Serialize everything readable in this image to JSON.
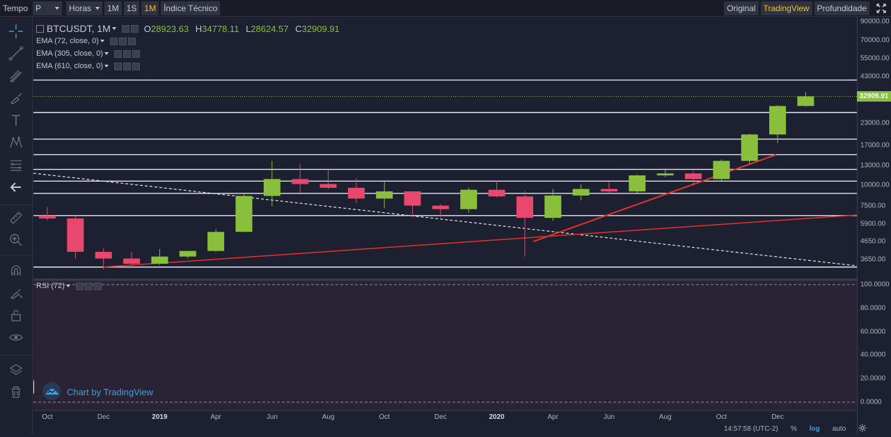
{
  "topbar": {
    "tempo_label": "Tempo",
    "interval_value": "P",
    "hours_label": "Horas",
    "intervals": [
      "1M",
      "1S",
      "1M"
    ],
    "active_interval_index": 2,
    "indicators_label": "Índice Técnico",
    "modes": [
      "Original",
      "TradingView",
      "Profundidade"
    ],
    "active_mode_index": 1
  },
  "legend": {
    "symbol": "BTCUSDT, 1M",
    "o_label": "O",
    "o_value": "28923.63",
    "h_label": "H",
    "h_value": "34778.11",
    "l_label": "L",
    "l_value": "28624.57",
    "c_label": "C",
    "c_value": "32909.91",
    "studies": [
      "EMA (72, close, 0)",
      "EMA (305, close, 0)",
      "EMA (610, close, 0)"
    ],
    "rsi": "RSI (72)"
  },
  "price_axis": {
    "labels": [
      "90000.00",
      "70000.00",
      "55000.00",
      "43000.00",
      "32909.91",
      "23000.00",
      "17000.00",
      "13000.00",
      "10000.00",
      "7500.00",
      "5900.00",
      "4650.00",
      "3650.00"
    ],
    "last_price": "32909.91",
    "rsi_labels": [
      "100.0000",
      "80.0000",
      "60.0000",
      "40.0000",
      "20.0000",
      "0.0000"
    ]
  },
  "time_axis": {
    "labels": [
      "Oct",
      "Dec",
      "2019",
      "Apr",
      "Jun",
      "Aug",
      "Oct",
      "Dec",
      "2020",
      "Apr",
      "Jun",
      "Aug",
      "Oct",
      "Dec"
    ],
    "bold": [
      "2019",
      "2020"
    ]
  },
  "bottombar": {
    "time": "14:57:58 (UTC-2)",
    "percent": "%",
    "log": "log",
    "auto": "auto"
  },
  "watermark": "Chart by TradingView",
  "colors": {
    "up": "#89bf3c",
    "down": "#e8486e",
    "background": "#1c2030",
    "rsi_background": "#2a2336",
    "trendline": "#e8322b",
    "accent": "#f0c419",
    "link": "#3b9fdf"
  },
  "chart_data": {
    "type": "candlestick",
    "scale": "log",
    "candles": [
      {
        "date": "2018-10",
        "o": 6600,
        "h": 7400,
        "l": 6200,
        "c": 6350
      },
      {
        "date": "2018-11",
        "o": 6350,
        "h": 6600,
        "l": 3700,
        "c": 4050
      },
      {
        "date": "2018-12",
        "o": 4050,
        "h": 4250,
        "l": 3200,
        "c": 3700
      },
      {
        "date": "2019-01",
        "o": 3700,
        "h": 4050,
        "l": 3400,
        "c": 3450
      },
      {
        "date": "2019-02",
        "o": 3450,
        "h": 4200,
        "l": 3400,
        "c": 3800
      },
      {
        "date": "2019-03",
        "o": 3800,
        "h": 4100,
        "l": 3700,
        "c": 4100
      },
      {
        "date": "2019-04",
        "o": 4100,
        "h": 5500,
        "l": 4050,
        "c": 5300
      },
      {
        "date": "2019-05",
        "o": 5300,
        "h": 9000,
        "l": 5300,
        "c": 8600
      },
      {
        "date": "2019-06",
        "o": 8600,
        "h": 13800,
        "l": 7500,
        "c": 10800
      },
      {
        "date": "2019-07",
        "o": 10800,
        "h": 13200,
        "l": 9000,
        "c": 10100
      },
      {
        "date": "2019-08",
        "o": 10100,
        "h": 12300,
        "l": 9400,
        "c": 9600
      },
      {
        "date": "2019-09",
        "o": 9600,
        "h": 10900,
        "l": 7800,
        "c": 8300
      },
      {
        "date": "2019-10",
        "o": 8300,
        "h": 10400,
        "l": 7300,
        "c": 9150
      },
      {
        "date": "2019-11",
        "o": 9150,
        "h": 9200,
        "l": 6500,
        "c": 7550
      },
      {
        "date": "2019-12",
        "o": 7550,
        "h": 7700,
        "l": 6450,
        "c": 7200
      },
      {
        "date": "2020-01",
        "o": 7200,
        "h": 9600,
        "l": 6850,
        "c": 9350
      },
      {
        "date": "2020-02",
        "o": 9350,
        "h": 10500,
        "l": 8450,
        "c": 8550
      },
      {
        "date": "2020-03",
        "o": 8550,
        "h": 9200,
        "l": 3800,
        "c": 6400
      },
      {
        "date": "2020-04",
        "o": 6400,
        "h": 9450,
        "l": 6150,
        "c": 8650
      },
      {
        "date": "2020-05",
        "o": 8650,
        "h": 10050,
        "l": 8100,
        "c": 9450
      },
      {
        "date": "2020-06",
        "o": 9450,
        "h": 10400,
        "l": 8900,
        "c": 9150
      },
      {
        "date": "2020-07",
        "o": 9150,
        "h": 11450,
        "l": 8950,
        "c": 11350
      },
      {
        "date": "2020-08",
        "o": 11350,
        "h": 12450,
        "l": 11100,
        "c": 11650
      },
      {
        "date": "2020-09",
        "o": 11650,
        "h": 12050,
        "l": 9900,
        "c": 10800
      },
      {
        "date": "2020-10",
        "o": 10800,
        "h": 14050,
        "l": 10550,
        "c": 13800
      },
      {
        "date": "2020-11",
        "o": 13800,
        "h": 19900,
        "l": 13200,
        "c": 19700
      },
      {
        "date": "2020-12",
        "o": 19700,
        "h": 29300,
        "l": 17550,
        "c": 28900
      },
      {
        "date": "2021-01",
        "o": 28923.63,
        "h": 34778.11,
        "l": 28624.57,
        "c": 32909.91
      }
    ],
    "horizontal_levels": [
      41000,
      26500,
      18500,
      15000,
      12300,
      10500,
      8900,
      6600,
      3300
    ],
    "rsi_range": [
      0,
      100
    ]
  }
}
